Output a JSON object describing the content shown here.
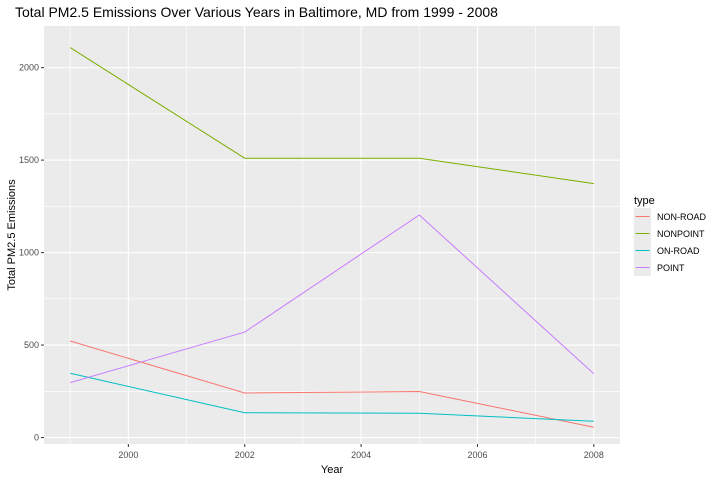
{
  "chart_data": {
    "type": "line",
    "title": "Total PM2.5 Emissions Over Various Years in Baltimore, MD from 1999 - 2008",
    "xlabel": "Year",
    "ylabel": "Total PM2.5 Emissions",
    "x": [
      1999,
      2002,
      2005,
      2008
    ],
    "xlim": [
      1998.55,
      2008.45
    ],
    "ylim": [
      -35,
      2225
    ],
    "x_ticks": [
      2000,
      2002,
      2004,
      2006,
      2008
    ],
    "x_tick_labels": [
      "2000",
      "2002",
      "2004",
      "2006",
      "2008"
    ],
    "y_ticks": [
      0,
      500,
      1000,
      1500,
      2000
    ],
    "y_tick_labels": [
      "0",
      "500",
      "1000",
      "1500",
      "2000"
    ],
    "grid": true,
    "panel_background": "#ebebeb",
    "gridline_color": "#ffffff",
    "legend": {
      "title": "type",
      "placement": "right"
    },
    "series": [
      {
        "name": "NON-ROAD",
        "color": "#f8766d",
        "values": [
          522,
          241,
          249,
          56
        ]
      },
      {
        "name": "NONPOINT",
        "color": "#7cae00",
        "values": [
          2108,
          1510,
          1510,
          1373
        ]
      },
      {
        "name": "ON-ROAD",
        "color": "#00bfc4",
        "values": [
          347,
          134,
          131,
          88
        ]
      },
      {
        "name": "POINT",
        "color": "#c77cff",
        "values": [
          297,
          570,
          1203,
          345
        ]
      }
    ]
  }
}
